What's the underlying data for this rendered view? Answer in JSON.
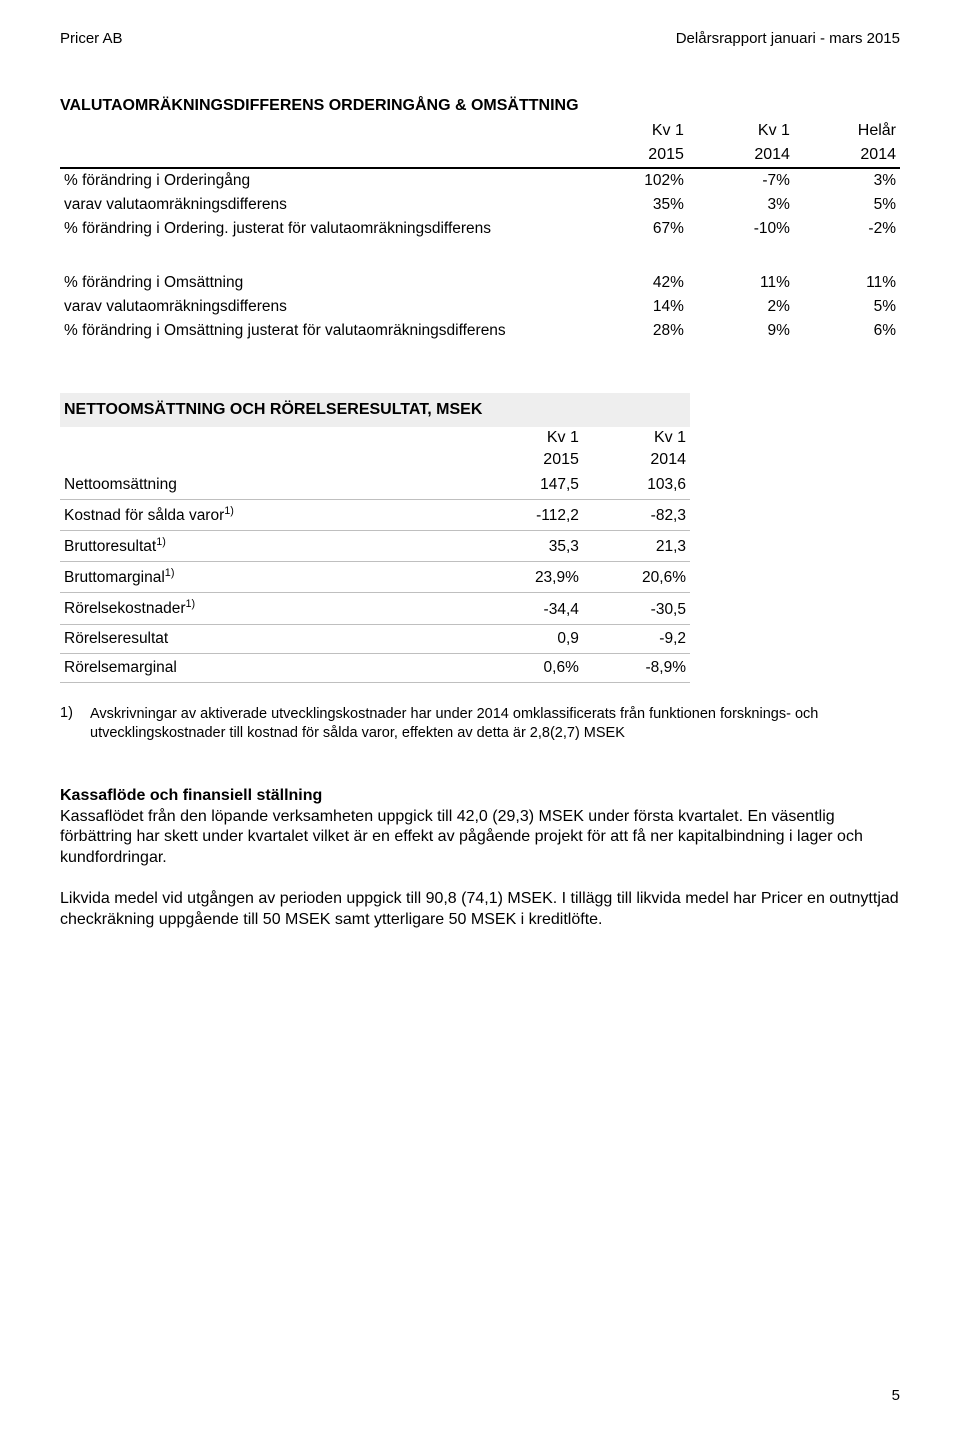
{
  "header": {
    "left": "Pricer AB",
    "right": "Delårsrapport januari - mars 2015"
  },
  "table1": {
    "title": "VALUTAOMRÄKNINGSDIFFERENS ORDERINGÅNG & OMSÄTTNING",
    "col_top": [
      "Kv 1",
      "Kv 1",
      "Helår"
    ],
    "col_bot": [
      "2015",
      "2014",
      "2014"
    ],
    "rows_top": [
      {
        "label": "% förändring i Orderingång",
        "v": [
          "102%",
          "-7%",
          "3%"
        ]
      },
      {
        "label": "varav valutaomräkningsdifferens",
        "v": [
          "35%",
          "3%",
          "5%"
        ]
      },
      {
        "label": "% förändring i Ordering. justerat för valutaomräkningsdifferens",
        "v": [
          "67%",
          "-10%",
          "-2%"
        ]
      }
    ],
    "rows_bot": [
      {
        "label": "% förändring i Omsättning",
        "v": [
          "42%",
          "11%",
          "11%"
        ]
      },
      {
        "label": "varav valutaomräkningsdifferens",
        "v": [
          "14%",
          "2%",
          "5%"
        ]
      },
      {
        "label": "% förändring i Omsättning justerat för valutaomräkningsdifferens",
        "v": [
          "28%",
          "9%",
          "6%"
        ]
      }
    ]
  },
  "table2": {
    "title": "NETTOOMSÄTTNING OCH RÖRELSERESULTAT, MSEK",
    "col_top": [
      "Kv 1",
      "Kv 1"
    ],
    "col_bot": [
      "2015",
      "2014"
    ],
    "rows": [
      {
        "label": "Nettoomsättning",
        "sup": "",
        "v": [
          "147,5",
          "103,6"
        ]
      },
      {
        "label": "Kostnad för sålda varor",
        "sup": "1)",
        "v": [
          "-112,2",
          "-82,3"
        ]
      },
      {
        "label": "Bruttoresultat",
        "sup": "1)",
        "v": [
          "35,3",
          "21,3"
        ]
      },
      {
        "label": "Bruttomarginal",
        "sup": "1)",
        "v": [
          "23,9%",
          "20,6%"
        ]
      },
      {
        "label": "Rörelsekostnader",
        "sup": "1)",
        "v": [
          "-34,4",
          "-30,5"
        ]
      },
      {
        "label": "Rörelseresultat",
        "sup": "",
        "v": [
          "0,9",
          "-9,2"
        ]
      },
      {
        "label": "Rörelsemarginal",
        "sup": "",
        "v": [
          "0,6%",
          "-8,9%"
        ]
      }
    ],
    "header_bg": "#eeeeee",
    "row_border": "#bfbfbf"
  },
  "footnote": {
    "num": "1)",
    "text": "Avskrivningar av aktiverade utvecklingskostnader har under 2014 omklassificerats från funktionen forsknings- och utvecklingskostnader till kostnad för sålda varor, effekten av detta är 2,8(2,7) MSEK"
  },
  "body": {
    "heading": "Kassaflöde och finansiell ställning",
    "p1": "Kassaflödet från den löpande verksamheten uppgick till 42,0 (29,3) MSEK under första kvartalet. En väsentlig förbättring har skett under kvartalet vilket är en effekt av pågående projekt för att få ner kapitalbindning i lager och kundfordringar.",
    "p2": "Likvida medel vid utgången av perioden uppgick till 90,8 (74,1) MSEK. I tillägg till likvida medel har Pricer en outnyttjad checkräkning uppgående till 50 MSEK samt ytterligare 50 MSEK i kreditlöfte."
  },
  "page_number": "5",
  "text_color": "#000000",
  "background_color": "#ffffff"
}
